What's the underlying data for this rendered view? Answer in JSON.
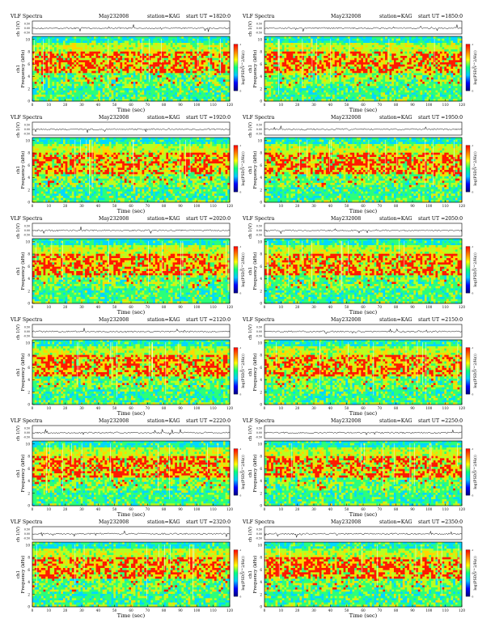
{
  "header": {
    "title_prefix": "VLF Spectra",
    "date": "May232008",
    "station": "station=KAG",
    "start_label": "start  UT ="
  },
  "panels": [
    {
      "start_ut": "1820:0"
    },
    {
      "start_ut": "1850:0"
    },
    {
      "start_ut": "1920:0"
    },
    {
      "start_ut": "1950:0"
    },
    {
      "start_ut": "2020:0"
    },
    {
      "start_ut": "2050:0"
    },
    {
      "start_ut": "2120:0"
    },
    {
      "start_ut": "2150:0"
    },
    {
      "start_ut": "2220:0"
    },
    {
      "start_ut": "2250:0"
    },
    {
      "start_ut": "2320:0"
    },
    {
      "start_ut": "2350:0"
    }
  ],
  "colors": {
    "background": "#ffffff",
    "axis": "#000000",
    "colormap": [
      "#00007f",
      "#0000ff",
      "#00c8ff",
      "#00ff80",
      "#ffff00",
      "#ff8000",
      "#ff0000"
    ]
  },
  "chart_data": {
    "type": "heatmap",
    "layout": "6 rows x 2 columns",
    "waveform": {
      "ylabel": "ch 1(V)",
      "ytick_labels": [
        "0.50",
        "0.00",
        "-0.50"
      ],
      "ylim": [
        -0.5,
        0.5
      ]
    },
    "spectrogram": {
      "ylabel_line1": "ch1",
      "ylabel_line2": "Frequency  (kHz)",
      "ylim": [
        0,
        10
      ],
      "ytick_labels": [
        "0",
        "2",
        "4",
        "6",
        "8",
        "10"
      ],
      "xlabel": "Time  (sec)",
      "xlim": [
        0,
        120
      ],
      "xtick_labels": [
        "0",
        "10",
        "20",
        "30",
        "40",
        "50",
        "60",
        "70",
        "80",
        "90",
        "100",
        "110",
        "120"
      ]
    },
    "colorbar": {
      "label": "log(PSD(V^2/Hz))",
      "tick_labels": [
        "-1",
        "-3",
        "-5"
      ]
    }
  }
}
